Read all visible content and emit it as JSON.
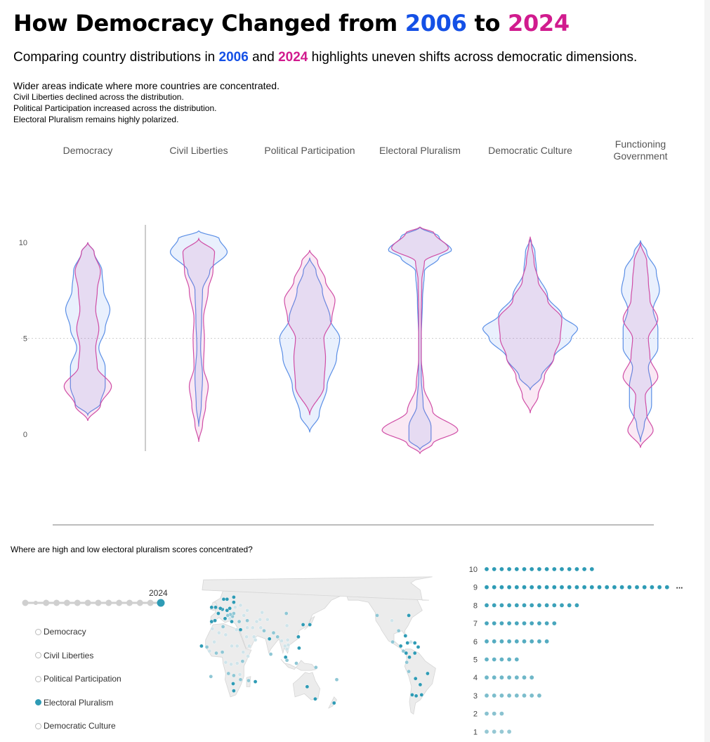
{
  "header": {
    "title_prefix": "How Democracy Changed from ",
    "year_a": "2006",
    "title_mid": " to ",
    "year_b": "2024",
    "subtitle_prefix": "Comparing country distributions in ",
    "subtitle_year_a": "2006",
    "subtitle_and": " and ",
    "subtitle_year_b": "2024",
    "subtitle_suffix": " highlights uneven shifts across democratic dimensions."
  },
  "notes": {
    "main": "Wider areas indicate where more countries are concentrated.",
    "lines": [
      "Civil Liberties declined across the distribution.",
      "Political Participation increased across the distribution.",
      "Electoral Pluralism remains highly polarized."
    ]
  },
  "colors": {
    "y2006": "#1450e6",
    "y2024": "#d11b8e",
    "accent": "#2e9bb5"
  },
  "chart_data": [
    {
      "type": "violin",
      "title": "",
      "categories": [
        "Democracy",
        "Civil Liberties",
        "Political Participation",
        "Electoral Pluralism",
        "Democratic Culture",
        "Functioning Government"
      ],
      "category_lines": [
        [
          "Democracy"
        ],
        [
          "Civil Liberties"
        ],
        [
          "Political Participation"
        ],
        [
          "Electoral Pluralism"
        ],
        [
          "Democratic Culture"
        ],
        [
          "Functioning",
          "Government"
        ]
      ],
      "y_ticks": [
        "10",
        "5",
        "0"
      ],
      "ylim": [
        0,
        10
      ],
      "reference_line": 5,
      "series": [
        {
          "name": "2006",
          "profiles": [
            [
              [
                1,
                0
              ],
              [
                1.6,
                0.4
              ],
              [
                2.5,
                0.55
              ],
              [
                3.5,
                0.55
              ],
              [
                4.5,
                0.35
              ],
              [
                5.5,
                0.55
              ],
              [
                6.5,
                0.7
              ],
              [
                7.5,
                0.5
              ],
              [
                8.5,
                0.45
              ],
              [
                9.5,
                0.2
              ],
              [
                10,
                0
              ]
            ],
            [
              [
                0.4,
                0
              ],
              [
                1.5,
                0.08
              ],
              [
                3,
                0.12
              ],
              [
                4.5,
                0.06
              ],
              [
                6,
                0.09
              ],
              [
                7.5,
                0.12
              ],
              [
                8.5,
                0.35
              ],
              [
                9.5,
                0.9
              ],
              [
                10.2,
                0.65
              ],
              [
                10.6,
                0
              ]
            ],
            [
              [
                0.1,
                0
              ],
              [
                1,
                0.3
              ],
              [
                2.5,
                0.55
              ],
              [
                4,
                0.85
              ],
              [
                5,
                0.95
              ],
              [
                6,
                0.65
              ],
              [
                7.5,
                0.4
              ],
              [
                8.5,
                0.2
              ],
              [
                9.2,
                0
              ]
            ],
            [
              [
                -0.8,
                0
              ],
              [
                -0.3,
                0.35
              ],
              [
                0.4,
                0.35
              ],
              [
                1.5,
                0.1
              ],
              [
                3,
                0.04
              ],
              [
                5,
                0.04
              ],
              [
                7,
                0.08
              ],
              [
                8.5,
                0.14
              ],
              [
                9.2,
                0.6
              ],
              [
                9.6,
                1.0
              ],
              [
                10.3,
                0.6
              ],
              [
                10.8,
                0
              ]
            ],
            [
              [
                2.3,
                0
              ],
              [
                3,
                0.35
              ],
              [
                4,
                0.75
              ],
              [
                5,
                1.3
              ],
              [
                5.5,
                1.5
              ],
              [
                6.2,
                1.0
              ],
              [
                7.2,
                0.55
              ],
              [
                8.5,
                0.2
              ],
              [
                9.5,
                0.15
              ],
              [
                10.2,
                0
              ]
            ],
            [
              [
                -0.4,
                0
              ],
              [
                0.5,
                0.12
              ],
              [
                1.5,
                0.35
              ],
              [
                2.5,
                0.35
              ],
              [
                3.5,
                0.25
              ],
              [
                4.5,
                0.55
              ],
              [
                5.5,
                0.55
              ],
              [
                6.5,
                0.4
              ],
              [
                7.5,
                0.6
              ],
              [
                8.5,
                0.5
              ],
              [
                9.5,
                0.2
              ],
              [
                10.1,
                0
              ]
            ]
          ]
        },
        {
          "name": "2024",
          "profiles": [
            [
              [
                0.7,
                0
              ],
              [
                1.5,
                0.4
              ],
              [
                2.5,
                0.75
              ],
              [
                3.5,
                0.3
              ],
              [
                4.5,
                0.25
              ],
              [
                5.5,
                0.35
              ],
              [
                6.5,
                0.25
              ],
              [
                7.5,
                0.3
              ],
              [
                8.5,
                0.4
              ],
              [
                9.5,
                0.2
              ],
              [
                10,
                0
              ]
            ],
            [
              [
                -0.4,
                0
              ],
              [
                0.5,
                0.12
              ],
              [
                1.5,
                0.22
              ],
              [
                2.5,
                0.3
              ],
              [
                3.5,
                0.15
              ],
              [
                5,
                0.18
              ],
              [
                6,
                0.15
              ],
              [
                7.5,
                0.3
              ],
              [
                8.5,
                0.45
              ],
              [
                9.5,
                0.5
              ],
              [
                10.2,
                0
              ]
            ],
            [
              [
                1,
                0
              ],
              [
                2.5,
                0.45
              ],
              [
                4,
                0.5
              ],
              [
                5,
                0.45
              ],
              [
                6,
                0.7
              ],
              [
                7,
                0.8
              ],
              [
                8,
                0.5
              ],
              [
                9,
                0.25
              ],
              [
                9.6,
                0
              ]
            ],
            [
              [
                -1.0,
                0
              ],
              [
                -0.5,
                0.4
              ],
              [
                0.2,
                1.2
              ],
              [
                1.2,
                0.4
              ],
              [
                2.5,
                0.12
              ],
              [
                4,
                0.04
              ],
              [
                6,
                0.04
              ],
              [
                8,
                0.06
              ],
              [
                9,
                0.14
              ],
              [
                9.7,
                0.9
              ],
              [
                10.5,
                0.45
              ],
              [
                10.8,
                0
              ]
            ],
            [
              [
                1.1,
                0
              ],
              [
                2,
                0.25
              ],
              [
                3,
                0.45
              ],
              [
                4,
                0.75
              ],
              [
                5,
                0.95
              ],
              [
                6,
                1.0
              ],
              [
                7,
                0.55
              ],
              [
                8,
                0.25
              ],
              [
                9,
                0.12
              ],
              [
                10,
                0.04
              ],
              [
                10.3,
                0
              ]
            ],
            [
              [
                -0.7,
                0
              ],
              [
                0.2,
                0.4
              ],
              [
                1,
                0.2
              ],
              [
                2,
                0.15
              ],
              [
                3,
                0.55
              ],
              [
                4,
                0.3
              ],
              [
                5,
                0.25
              ],
              [
                6,
                0.55
              ],
              [
                7,
                0.3
              ],
              [
                8,
                0.25
              ],
              [
                9,
                0.2
              ],
              [
                10,
                0
              ]
            ]
          ]
        }
      ]
    },
    {
      "type": "dot_histogram",
      "title": "Where are high and low electoral pluralism scores concentrated?",
      "categories": [
        "10",
        "9",
        "8",
        "7",
        "6",
        "5",
        "4",
        "3",
        "2",
        "1"
      ],
      "values": [
        15,
        25,
        13,
        10,
        9,
        5,
        7,
        8,
        3,
        4
      ],
      "overflow_marker": "..."
    }
  ],
  "map": {
    "dots": [
      [
        -122,
        45,
        2
      ],
      [
        -100,
        40,
        1
      ],
      [
        -75,
        45,
        3
      ],
      [
        -90,
        30,
        2
      ],
      [
        -80,
        25,
        3
      ],
      [
        -99,
        19,
        2
      ],
      [
        -87,
        15,
        3
      ],
      [
        -83,
        10,
        2
      ],
      [
        -79,
        8,
        3
      ],
      [
        -74,
        4,
        3
      ],
      [
        -66,
        8,
        3
      ],
      [
        -78,
        -1,
        2
      ],
      [
        -75,
        -10,
        2
      ],
      [
        -65,
        -17,
        3
      ],
      [
        -58,
        -23,
        3
      ],
      [
        -47,
        -12,
        3
      ],
      [
        -70,
        -33,
        3
      ],
      [
        -64,
        -34,
        3
      ],
      [
        -56,
        -33,
        3
      ],
      [
        -61,
        14,
        3
      ],
      [
        -72,
        19,
        1
      ],
      [
        -66,
        18,
        3
      ],
      [
        -77,
        18,
        3
      ],
      [
        -3,
        40,
        3
      ],
      [
        -8,
        39,
        3
      ],
      [
        2,
        47,
        3
      ],
      [
        -2,
        53,
        3
      ],
      [
        -8,
        53,
        3
      ],
      [
        8,
        51,
        3
      ],
      [
        5,
        52,
        3
      ],
      [
        15,
        61,
        3
      ],
      [
        10,
        61,
        3
      ],
      [
        25,
        63,
        3
      ],
      [
        25,
        58,
        3
      ],
      [
        12,
        42,
        3
      ],
      [
        15,
        50,
        3
      ],
      [
        19,
        52,
        3
      ],
      [
        23,
        44,
        2
      ],
      [
        22,
        39,
        3
      ],
      [
        33,
        39,
        2
      ],
      [
        40,
        45,
        1
      ],
      [
        35,
        55,
        1
      ],
      [
        45,
        50,
        1
      ],
      [
        25,
        47,
        2
      ],
      [
        27,
        53,
        1
      ],
      [
        20,
        46,
        2
      ],
      [
        16,
        45,
        2
      ],
      [
        19,
        42,
        1
      ],
      [
        9,
        34,
        2
      ],
      [
        3,
        28,
        1
      ],
      [
        -7,
        32,
        1
      ],
      [
        13,
        26,
        1
      ],
      [
        -4,
        19,
        1
      ],
      [
        -15,
        14,
        2
      ],
      [
        -11,
        10,
        1
      ],
      [
        -1,
        8,
        2
      ],
      [
        8,
        9,
        2
      ],
      [
        22,
        15,
        1
      ],
      [
        30,
        15,
        1
      ],
      [
        39,
        9,
        1
      ],
      [
        46,
        5,
        1
      ],
      [
        38,
        0,
        2
      ],
      [
        30,
        -2,
        1
      ],
      [
        21,
        -3,
        1
      ],
      [
        13,
        -1,
        1
      ],
      [
        17,
        -12,
        2
      ],
      [
        25,
        -14,
        2
      ],
      [
        34,
        -13,
        1
      ],
      [
        35,
        -18,
        2
      ],
      [
        24,
        -22,
        3
      ],
      [
        25,
        -29,
        3
      ],
      [
        47,
        -19,
        2
      ],
      [
        57,
        -20,
        3
      ],
      [
        -23,
        15,
        3
      ],
      [
        -9,
        -15,
        2
      ],
      [
        29,
        31,
        1
      ],
      [
        35,
        31,
        3
      ],
      [
        45,
        33,
        1
      ],
      [
        53,
        33,
        1
      ],
      [
        44,
        24,
        1
      ],
      [
        55,
        24,
        1
      ],
      [
        57,
        21,
        1
      ],
      [
        48,
        15,
        1
      ],
      [
        65,
        33,
        1
      ],
      [
        70,
        30,
        2
      ],
      [
        78,
        22,
        3
      ],
      [
        84,
        28,
        2
      ],
      [
        90,
        24,
        2
      ],
      [
        80,
        7,
        2
      ],
      [
        96,
        20,
        1
      ],
      [
        101,
        15,
        1
      ],
      [
        106,
        16,
        1
      ],
      [
        104,
        12,
        1
      ],
      [
        105,
        21,
        1
      ],
      [
        102,
        4,
        3
      ],
      [
        104,
        1,
        2
      ],
      [
        118,
        -2,
        2
      ],
      [
        122,
        13,
        3
      ],
      [
        121,
        24,
        3
      ],
      [
        128,
        36,
        3
      ],
      [
        138,
        36,
        3
      ],
      [
        104,
        35,
        1
      ],
      [
        103,
        47,
        2
      ],
      [
        67,
        48,
        1
      ],
      [
        64,
        41,
        1
      ],
      [
        59,
        39,
        1
      ],
      [
        75,
        41,
        1
      ],
      [
        45,
        40,
        2
      ],
      [
        134,
        -25,
        3
      ],
      [
        146,
        -37,
        3
      ],
      [
        174,
        -41,
        3
      ],
      [
        147,
        -6,
        2
      ],
      [
        178,
        -18,
        2
      ]
    ]
  },
  "controls": {
    "timeline_points": 14,
    "selected_year": "2024",
    "dimensions": [
      "Democracy",
      "Civil Liberties",
      "Political Participation",
      "Electoral Pluralism",
      "Democratic Culture"
    ],
    "selected_dimension": "Electoral Pluralism"
  }
}
